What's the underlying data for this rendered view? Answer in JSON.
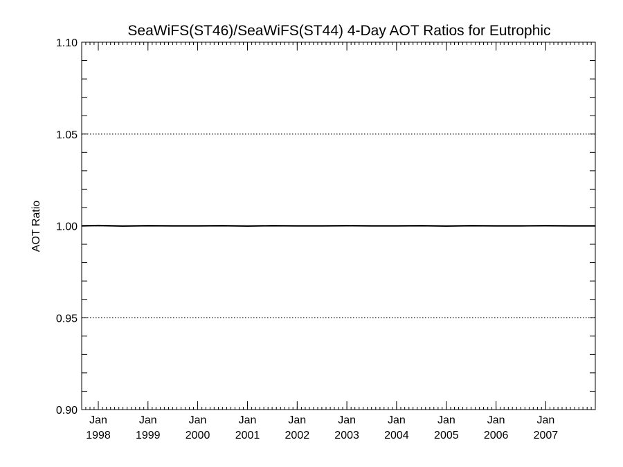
{
  "chart_data": {
    "type": "line",
    "title": "SeaWiFS(ST46)/SeaWiFS(ST44) 4-Day AOT Ratios for Eutrophic",
    "xlabel": "",
    "ylabel": "AOT Ratio",
    "xlim": [
      "1997-09-01",
      "2007-12-31"
    ],
    "ylim": [
      0.9,
      1.1
    ],
    "y_ticks": [
      "0.90",
      "0.95",
      "1.00",
      "1.05",
      "1.10"
    ],
    "y_gridlines": [
      0.95,
      1.0,
      1.05
    ],
    "grid": "dotted horizontal at labeled major ticks",
    "x_ticks": [
      {
        "month": "Jan",
        "year": "1998",
        "date": "1998-01-01"
      },
      {
        "month": "Jan",
        "year": "1999",
        "date": "1999-01-01"
      },
      {
        "month": "Jan",
        "year": "2000",
        "date": "2000-01-01"
      },
      {
        "month": "Jan",
        "year": "2001",
        "date": "2001-01-01"
      },
      {
        "month": "Jan",
        "year": "2002",
        "date": "2002-01-01"
      },
      {
        "month": "Jan",
        "year": "2003",
        "date": "2003-01-01"
      },
      {
        "month": "Jan",
        "year": "2004",
        "date": "2004-01-01"
      },
      {
        "month": "Jan",
        "year": "2005",
        "date": "2005-01-01"
      },
      {
        "month": "Jan",
        "year": "2006",
        "date": "2006-01-01"
      },
      {
        "month": "Jan",
        "year": "2007",
        "date": "2007-01-01"
      }
    ],
    "series": [
      {
        "color": "#000000",
        "x": [
          "1997-09-01",
          "1998-01-01",
          "1998-07-01",
          "1999-01-01",
          "1999-07-01",
          "2000-01-01",
          "2000-07-01",
          "2001-01-01",
          "2001-07-01",
          "2002-01-01",
          "2002-07-01",
          "2003-01-01",
          "2003-07-01",
          "2004-01-01",
          "2004-07-01",
          "2005-01-01",
          "2005-07-01",
          "2006-01-01",
          "2006-07-01",
          "2007-01-01",
          "2007-07-01",
          "2007-12-31"
        ],
        "y": [
          1.0,
          1.0002,
          0.9999,
          1.0001,
          1.0,
          1.0,
          1.0001,
          0.9999,
          1.0001,
          1.0,
          1.0,
          1.0001,
          1.0,
          1.0,
          1.0001,
          0.9999,
          1.0001,
          1.0,
          1.0,
          1.0001,
          1.0,
          1.0
        ]
      }
    ]
  }
}
